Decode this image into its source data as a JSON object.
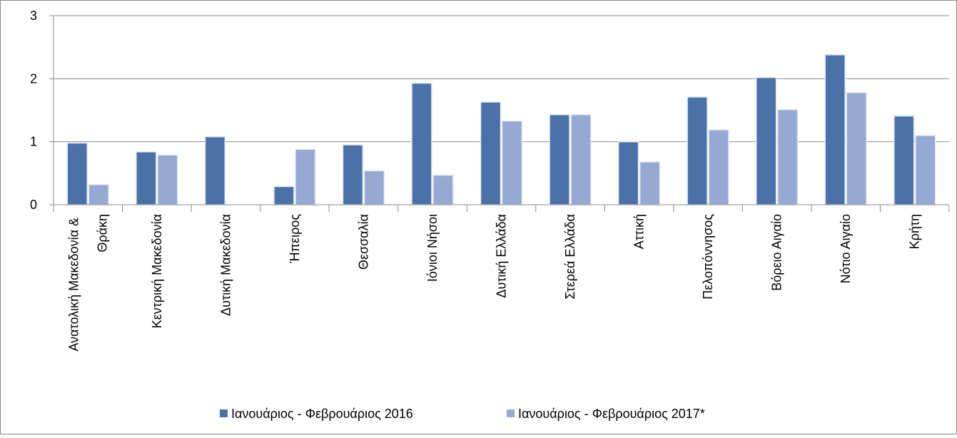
{
  "chart_data": {
    "type": "bar",
    "categories": [
      "Ανατολική Μακεδονία & Θράκη",
      "Κεντρική Μακεδονία",
      "Δυτική Μακεδονία",
      "Ήπειρος",
      "Θεσσαλία",
      "Ιόνιοι Νήσοι",
      "Δυτική Ελλάδα",
      "Στερεά Ελλάδα",
      "Αττική",
      "Πελοπόννησος",
      "Βόρειο Αιγαίο",
      "Νότιο Αιγαίο",
      "Κρήτη"
    ],
    "series": [
      {
        "name": "Ιανουάριος - Φεβρουάριος 2016",
        "color": "#4a71a8",
        "values": [
          0.98,
          0.84,
          1.08,
          0.29,
          0.95,
          1.93,
          1.63,
          1.43,
          1.0,
          1.71,
          2.02,
          2.38,
          1.41
        ]
      },
      {
        "name": "Ιανουάριος - Φεβρουάριος 2017*",
        "color": "#95a9d4",
        "values": [
          0.32,
          0.79,
          null,
          0.88,
          0.54,
          0.47,
          1.33,
          1.43,
          0.68,
          1.19,
          1.51,
          1.78,
          1.1
        ]
      }
    ],
    "ylim": [
      0,
      3
    ],
    "yticks": [
      0,
      1,
      2,
      3
    ],
    "grid": true,
    "legend": "bottom"
  }
}
